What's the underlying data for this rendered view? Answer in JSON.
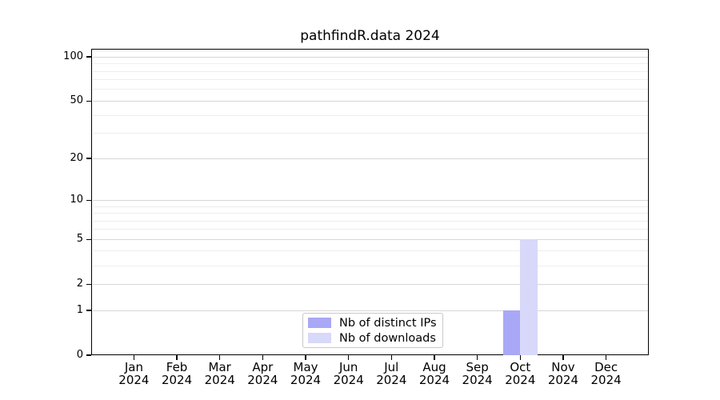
{
  "title": "pathfindR.data 2024",
  "colors": {
    "distinct_ips": "#a8a8f6",
    "downloads": "#d8d8fa",
    "grid_minor": "#eeeeee",
    "grid_major": "#d6d6d6",
    "spine": "#000000",
    "text": "#000000",
    "background": "#ffffff",
    "legend_border": "#c9c9c9"
  },
  "y_axis": {
    "scale": "log1p",
    "tick_labels": [
      "0",
      "1",
      "2",
      "5",
      "10",
      "20",
      "50",
      "100"
    ],
    "major_gridlines": [
      1,
      2,
      5,
      10,
      20,
      50,
      100
    ],
    "minor_gridlines": [
      3,
      4,
      6,
      7,
      8,
      9,
      30,
      40,
      60,
      70,
      80,
      90,
      110
    ]
  },
  "x_axis": {
    "months": [
      "Jan",
      "Feb",
      "Mar",
      "Apr",
      "May",
      "Jun",
      "Jul",
      "Aug",
      "Sep",
      "Oct",
      "Nov",
      "Dec"
    ],
    "year": "2024"
  },
  "chart_data": {
    "type": "bar",
    "title": "pathfindR.data 2024",
    "categories": [
      "Jan 2024",
      "Feb 2024",
      "Mar 2024",
      "Apr 2024",
      "May 2024",
      "Jun 2024",
      "Jul 2024",
      "Aug 2024",
      "Sep 2024",
      "Oct 2024",
      "Nov 2024",
      "Dec 2024"
    ],
    "series": [
      {
        "name": "Nb of distinct IPs",
        "color": "#a8a8f6",
        "values": [
          0,
          0,
          0,
          0,
          0,
          0,
          0,
          0,
          0,
          1,
          0,
          0
        ]
      },
      {
        "name": "Nb of downloads",
        "color": "#d8d8fa",
        "values": [
          0,
          0,
          0,
          0,
          0,
          0,
          0,
          0,
          0,
          5,
          0,
          0
        ]
      }
    ],
    "xlabel": "",
    "ylabel": "",
    "y_scale": "log1p",
    "y_ticks": [
      0,
      1,
      2,
      5,
      10,
      20,
      50,
      100
    ],
    "ylim": [
      0,
      113
    ],
    "grid": true,
    "legend_position": "lower center"
  }
}
